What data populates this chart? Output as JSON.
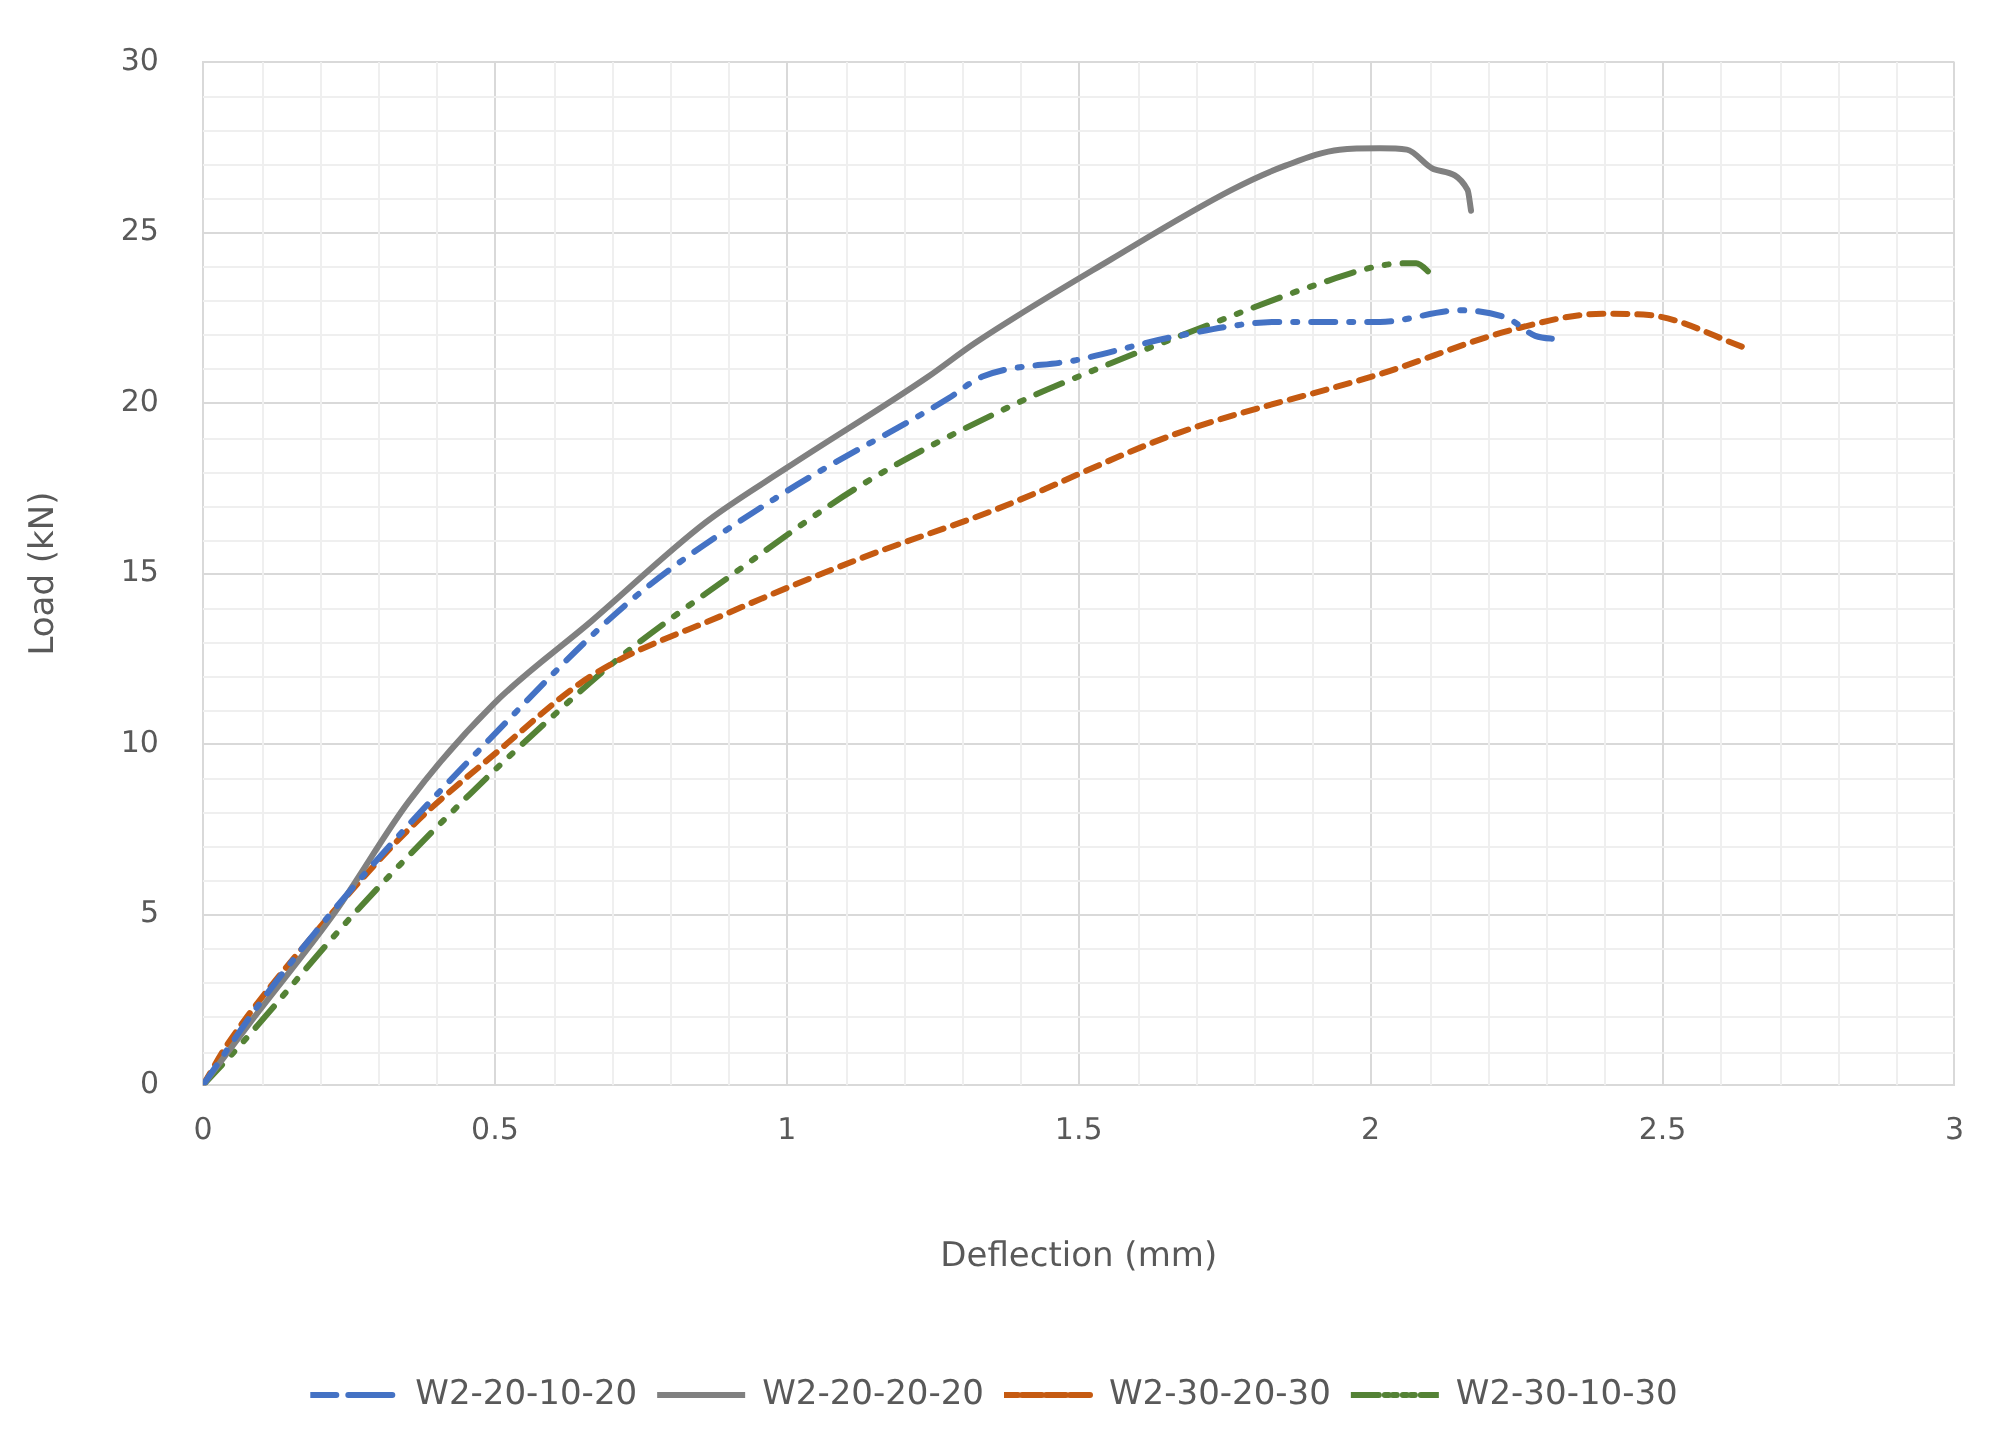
{
  "chart_data": {
    "type": "line",
    "xlabel": "Deflection (mm)",
    "ylabel": "Load (kN)",
    "xlim": [
      0,
      3
    ],
    "xticks": [
      0,
      0.5,
      1,
      1.5,
      2,
      2.5,
      3
    ],
    "ylim": [
      0,
      30
    ],
    "yticks": [
      0,
      5,
      10,
      15,
      20,
      25,
      30
    ],
    "grid": true,
    "legend": "bottom",
    "marker": "none",
    "series": [
      {
        "name": "W2-20-10-20",
        "color": "#4472c4",
        "line_style": "dashdot",
        "x": [
          0,
          0.099,
          0.261,
          0.492,
          0.734,
          0.988,
          1.277,
          1.334,
          1.496,
          1.67,
          1.843,
          2.016,
          2.154,
          2.235,
          2.282,
          2.322
        ],
        "values": [
          0,
          2.44,
          5.88,
          10.16,
          14.23,
          17.29,
          20.14,
          20.77,
          21.26,
          21.97,
          22.38,
          22.38,
          22.72,
          22.48,
          21.97,
          21.87
        ]
      },
      {
        "name": "W2-20-20-20",
        "color": "#808080",
        "line_style": "solid",
        "x": [
          0,
          0.088,
          0.226,
          0.353,
          0.498,
          0.665,
          0.861,
          1.0,
          1.24,
          1.323,
          1.554,
          1.762,
          1.854,
          1.947,
          2.016,
          2.062,
          2.108,
          2.166,
          2.172
        ],
        "values": [
          0,
          2.0,
          5.07,
          8.33,
          11.18,
          13.6,
          16.5,
          18.1,
          20.75,
          21.77,
          24.2,
          26.25,
          26.96,
          27.43,
          27.47,
          27.43,
          26.86,
          26.25,
          25.64
        ]
      },
      {
        "name": "W2-30-20-30",
        "color": "#c55a11",
        "line_style": "dashed",
        "x": [
          0,
          0.042,
          0.192,
          0.353,
          0.503,
          0.665,
          0.896,
          1.127,
          1.358,
          1.67,
          2.016,
          2.247,
          2.397,
          2.477,
          2.645
        ],
        "values": [
          0,
          1.2,
          4.46,
          7.51,
          9.76,
          12.0,
          13.82,
          15.45,
          16.88,
          19.12,
          20.85,
          22.17,
          22.62,
          22.58,
          21.6
        ]
      },
      {
        "name": "W2-30-10-30",
        "color": "#548235",
        "line_style": "dashdotdot",
        "x": [
          0,
          0.065,
          0.261,
          0.457,
          0.596,
          0.711,
          0.896,
          1.127,
          1.386,
          1.554,
          1.704,
          1.912,
          2.024,
          2.078,
          2.105
        ],
        "values": [
          0,
          1.2,
          5.07,
          8.53,
          10.77,
          12.5,
          14.84,
          17.59,
          19.93,
          21.16,
          22.17,
          23.5,
          24.05,
          24.1,
          23.76
        ]
      }
    ]
  }
}
